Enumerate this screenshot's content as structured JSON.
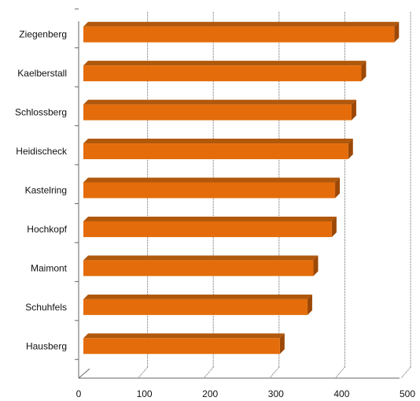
{
  "chart_data": {
    "type": "bar",
    "orientation": "horizontal",
    "style": "3d",
    "title": "",
    "xlabel": "",
    "ylabel": "",
    "categories": [
      "Ziegenberg",
      "Kaelberstall",
      "Schlossberg",
      "Heidischeck",
      "Kastelring",
      "Hochkopf",
      "Maimont",
      "Schuhfels",
      "Hausberg"
    ],
    "values": [
      480,
      430,
      415,
      410,
      390,
      385,
      357,
      348,
      306
    ],
    "xlim": [
      0,
      500
    ],
    "xticks": [
      0,
      100,
      200,
      300,
      400,
      500
    ],
    "grid": true,
    "legend": "none",
    "colors": {
      "bar": "#E46C0A",
      "bar_top": "#B0580C",
      "bar_side": "#9C4806",
      "grid": "#666666"
    }
  }
}
